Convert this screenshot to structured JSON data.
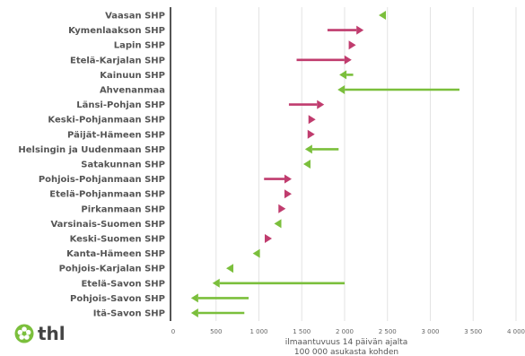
{
  "brand": {
    "name": "thl"
  },
  "chart_data": {
    "type": "arrow-dot",
    "categories": [
      "Vaasan SHP",
      "Kymenlaakson SHP",
      "Lapin SHP",
      "Etelä-Karjalan SHP",
      "Kainuun SHP",
      "Ahvenanmaa",
      "Länsi-Pohjan SHP",
      "Keski-Pohjanmaan SHP",
      "Päijät-Hämeen SHP",
      "Helsingin ja Uudenmaan SHP",
      "Satakunnan SHP",
      "Pohjois-Pohjanmaan SHP",
      "Etelä-Pohjanmaan SHP",
      "Pirkanmaan SHP",
      "Varsinais-Suomen SHP",
      "Keski-Suomen SHP",
      "Kanta-Hämeen SHP",
      "Pohjois-Karjalan SHP",
      "Etelä-Savon SHP",
      "Pohjois-Savon SHP",
      "Itä-Savon SHP"
    ],
    "series": [
      {
        "values_from": [
          2460,
          1800,
          2040,
          1440,
          2100,
          3340,
          1350,
          1570,
          1580,
          1930,
          1600,
          1060,
          1320,
          1230,
          1260,
          1060,
          1010,
          710,
          2000,
          880,
          830
        ],
        "values_to": [
          2440,
          2180,
          2090,
          2040,
          1980,
          1960,
          1720,
          1620,
          1610,
          1580,
          1560,
          1340,
          1340,
          1270,
          1220,
          1110,
          970,
          660,
          500,
          250,
          250
        ]
      }
    ],
    "xlim": [
      0,
      4000
    ],
    "xticks": [
      0,
      500,
      1000,
      1500,
      2000,
      2500,
      3000,
      3500,
      4000
    ],
    "xtick_labels": [
      "0",
      "500",
      "1 000",
      "1 500",
      "2 000",
      "2 500",
      "3 000",
      "3 500",
      "4 000"
    ],
    "xlabel_lines": [
      "ilmaantuvuus 14 päivän ajalta",
      "100 000 asukasta kohden"
    ],
    "colors": {
      "increase": "#c03c6e",
      "decrease": "#7bbf3c",
      "grid": "#e3e3e3",
      "axis": "#555555"
    },
    "grid": true
  }
}
